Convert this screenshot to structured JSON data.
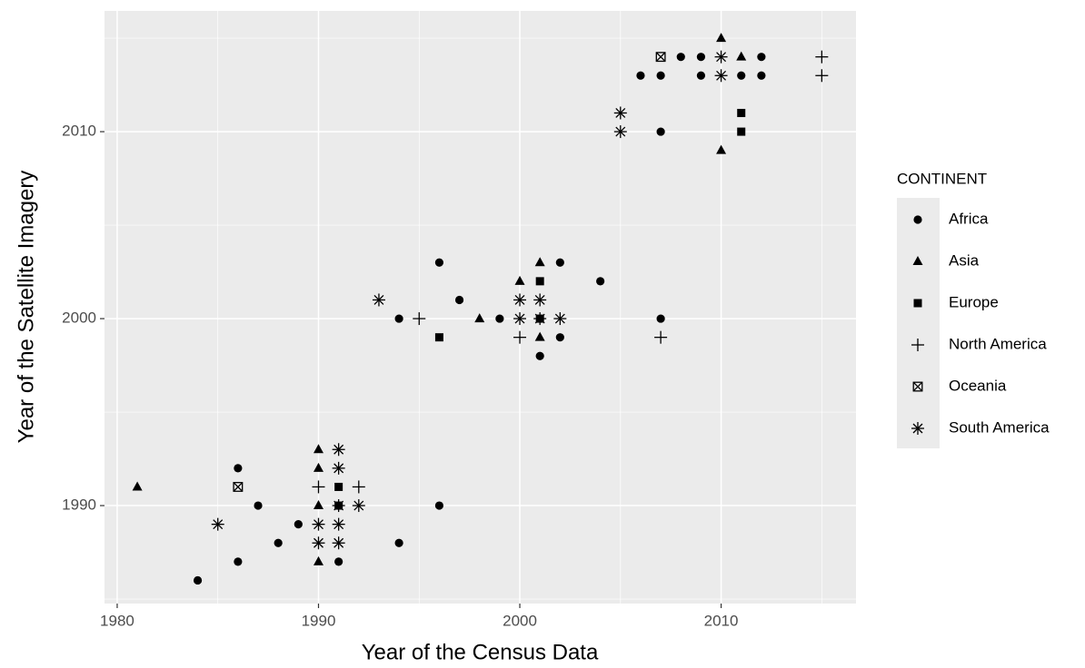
{
  "chart_data": {
    "type": "scatter",
    "x_label": "Year of the Census Data",
    "y_label": "Year of the Satellite Imagery",
    "legend_title": "CONTINENT",
    "legend_position": "right",
    "grid": true,
    "xlim": [
      1979.37,
      2016.7
    ],
    "xticks": [
      1980,
      1990,
      2000,
      2010
    ],
    "xminor": [
      1985,
      1995,
      2005,
      2015
    ],
    "ylim": [
      1984.76,
      2016.46
    ],
    "yticks": [
      1990,
      2000,
      2010
    ],
    "yminor": [
      1985,
      1995,
      2005,
      2015
    ],
    "series": [
      {
        "name": "Africa",
        "shape": "circle",
        "color": "#000000",
        "x": [
          1984,
          1986,
          1986,
          1987,
          1988,
          1989,
          1991,
          1994,
          1996,
          1994,
          1996,
          1997,
          1999,
          2001,
          2002,
          2002,
          2004,
          2007,
          2007,
          2006,
          2007,
          2008,
          2009,
          2009,
          2011,
          2012,
          2012
        ],
        "values": [
          1986,
          1992,
          1987,
          1990,
          1988,
          1989,
          1987,
          1988,
          1990,
          2000,
          2003,
          2001,
          2000,
          1998,
          1999,
          2003,
          2002,
          2000,
          2010,
          2013,
          2013,
          2014,
          2014,
          2013,
          2013,
          2014,
          2013
        ]
      },
      {
        "name": "Asia",
        "shape": "triangle",
        "color": "#000000",
        "x": [
          1981,
          1990,
          1990,
          1990,
          1990,
          1998,
          2000,
          2001,
          2001,
          2010,
          2011,
          2010
        ],
        "values": [
          1991,
          1993,
          1992,
          1990,
          1987,
          2000,
          2002,
          2003,
          1999,
          2015,
          2014,
          2009
        ]
      },
      {
        "name": "Europe",
        "shape": "square",
        "color": "#000000",
        "x": [
          1991,
          1991,
          1996,
          2001,
          2001,
          2011,
          2011
        ],
        "values": [
          1991,
          1990,
          1999,
          2002,
          2000,
          2011,
          2010
        ]
      },
      {
        "name": "North America",
        "shape": "plus",
        "color": "#000000",
        "x": [
          1990,
          1992,
          1995,
          2000,
          2007,
          2015,
          2015
        ],
        "values": [
          1991,
          1991,
          2000,
          1999,
          1999,
          2014,
          2013
        ]
      },
      {
        "name": "Oceania",
        "shape": "boxcross",
        "color": "#000000",
        "x": [
          1986,
          2007
        ],
        "values": [
          1991,
          2014
        ]
      },
      {
        "name": "South America",
        "shape": "asterisk",
        "color": "#000000",
        "x": [
          1985,
          1990,
          1990,
          1991,
          1991,
          1991,
          1991,
          1991,
          1992,
          1993,
          2000,
          2000,
          2001,
          2001,
          2002,
          2005,
          2005,
          2010,
          2010
        ],
        "values": [
          1989,
          1989,
          1988,
          1993,
          1992,
          1990,
          1989,
          1988,
          1990,
          2001,
          2001,
          2000,
          2001,
          2000,
          2000,
          2011,
          2010,
          2014,
          2013
        ]
      }
    ]
  }
}
